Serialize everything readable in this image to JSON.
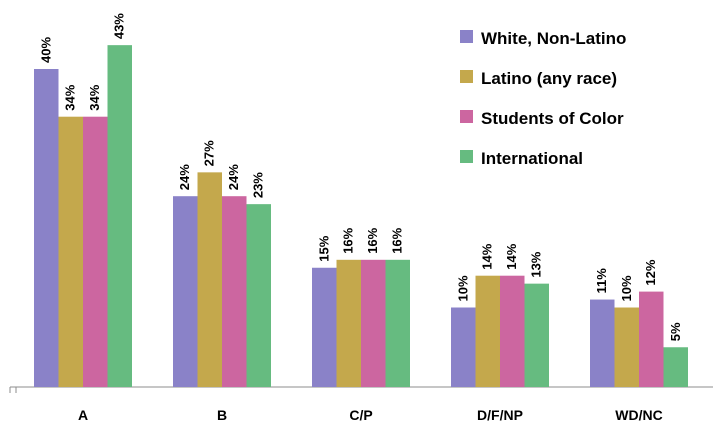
{
  "chart_data": {
    "type": "bar",
    "categories": [
      "A",
      "B",
      "C/P",
      "D/F/NP",
      "WD/NC"
    ],
    "series": [
      {
        "name": "White, Non-Latino",
        "values": [
          40,
          24,
          15,
          10,
          11
        ],
        "color": "#8a82c8"
      },
      {
        "name": "Latino (any race)",
        "values": [
          34,
          27,
          16,
          14,
          10
        ],
        "color": "#c4a84c"
      },
      {
        "name": "Students of Color",
        "values": [
          34,
          24,
          16,
          14,
          12
        ],
        "color": "#cc66a0"
      },
      {
        "name": "International",
        "values": [
          43,
          23,
          16,
          13,
          5
        ],
        "color": "#66bb80"
      }
    ],
    "value_suffix": "%",
    "ylim": [
      0,
      46
    ],
    "grid": false,
    "legend_position": "top-right"
  }
}
